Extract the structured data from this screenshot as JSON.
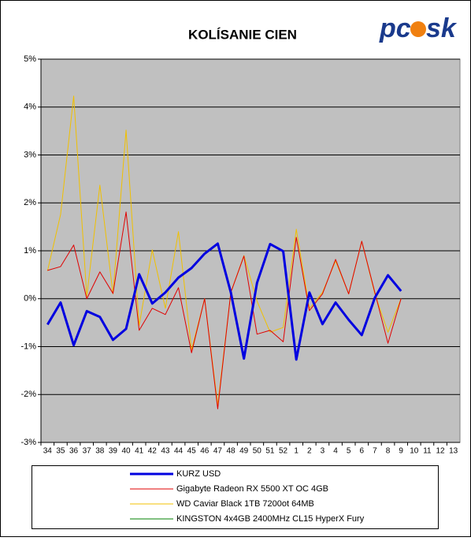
{
  "chart_data": {
    "type": "line",
    "title": "KOLÍSANIE CIEN",
    "logo": [
      "pc",
      "sk"
    ],
    "categories": [
      "34",
      "35",
      "36",
      "37",
      "38",
      "39",
      "40",
      "41",
      "42",
      "43",
      "44",
      "45",
      "46",
      "47",
      "48",
      "49",
      "50",
      "51",
      "52",
      "1",
      "2",
      "3",
      "4",
      "5",
      "6",
      "7",
      "8",
      "9",
      "10",
      "11",
      "12",
      "13"
    ],
    "ylim": [
      -3,
      5
    ],
    "yticks": [
      {
        "value": -3,
        "label": "-3%"
      },
      {
        "value": -2,
        "label": "-2%"
      },
      {
        "value": -1,
        "label": "-1%"
      },
      {
        "value": 0,
        "label": "0%"
      },
      {
        "value": 1,
        "label": "1%"
      },
      {
        "value": 2,
        "label": "2%"
      },
      {
        "value": 3,
        "label": "3%"
      },
      {
        "value": 4,
        "label": "4%"
      },
      {
        "value": 5,
        "label": "5%"
      }
    ],
    "grid": true,
    "legend": "bottom",
    "series": [
      {
        "name": "KURZ USD",
        "color": "#0000e0",
        "width": 3,
        "values": [
          -0.54,
          -0.08,
          -0.97,
          -0.26,
          -0.38,
          -0.86,
          -0.63,
          0.51,
          -0.1,
          0.13,
          0.44,
          0.64,
          0.94,
          1.15,
          0.13,
          -1.25,
          0.33,
          1.14,
          0.99,
          -1.27,
          0.13,
          -0.53,
          -0.08,
          -0.44,
          -0.76,
          0.02,
          0.49,
          0.16,
          null,
          null,
          null,
          null
        ]
      },
      {
        "name": "Gigabyte Radeon RX 5500 XT OC 4GB",
        "color": "#e00000",
        "width": 1,
        "values": [
          0.59,
          0.67,
          1.12,
          0,
          0.56,
          0.11,
          1.81,
          -0.66,
          -0.2,
          -0.33,
          0.23,
          -1.13,
          0,
          -2.3,
          0.13,
          0.89,
          -0.74,
          -0.66,
          -0.9,
          1.28,
          -0.25,
          0.1,
          0.82,
          0.1,
          1.2,
          0.13,
          -0.93,
          0,
          null,
          null,
          null,
          null
        ]
      },
      {
        "name": "WD Caviar Black 1TB 7200ot 64MB",
        "color": "#f0c000",
        "width": 1,
        "values": [
          0.58,
          1.76,
          4.23,
          0.05,
          2.37,
          0.1,
          3.52,
          -0.56,
          1.02,
          -0.2,
          1.4,
          -1.07,
          0,
          -2.22,
          0.13,
          0.9,
          -0.05,
          -0.7,
          -0.6,
          1.45,
          -0.2,
          0.13,
          0.79,
          0.1,
          1.2,
          0.1,
          -0.7,
          0,
          null,
          null,
          null,
          null
        ]
      },
      {
        "name": "KINGSTON 4x4GB 2400MHz CL15 HyperX Fury",
        "color": "#008000",
        "width": 1,
        "values": [
          null,
          null,
          null,
          null,
          null,
          null,
          null,
          null,
          null,
          null,
          null,
          null,
          null,
          null,
          null,
          null,
          null,
          null,
          null,
          null,
          null,
          null,
          null,
          null,
          null,
          null,
          null,
          null,
          null,
          null,
          null,
          null
        ]
      }
    ]
  }
}
